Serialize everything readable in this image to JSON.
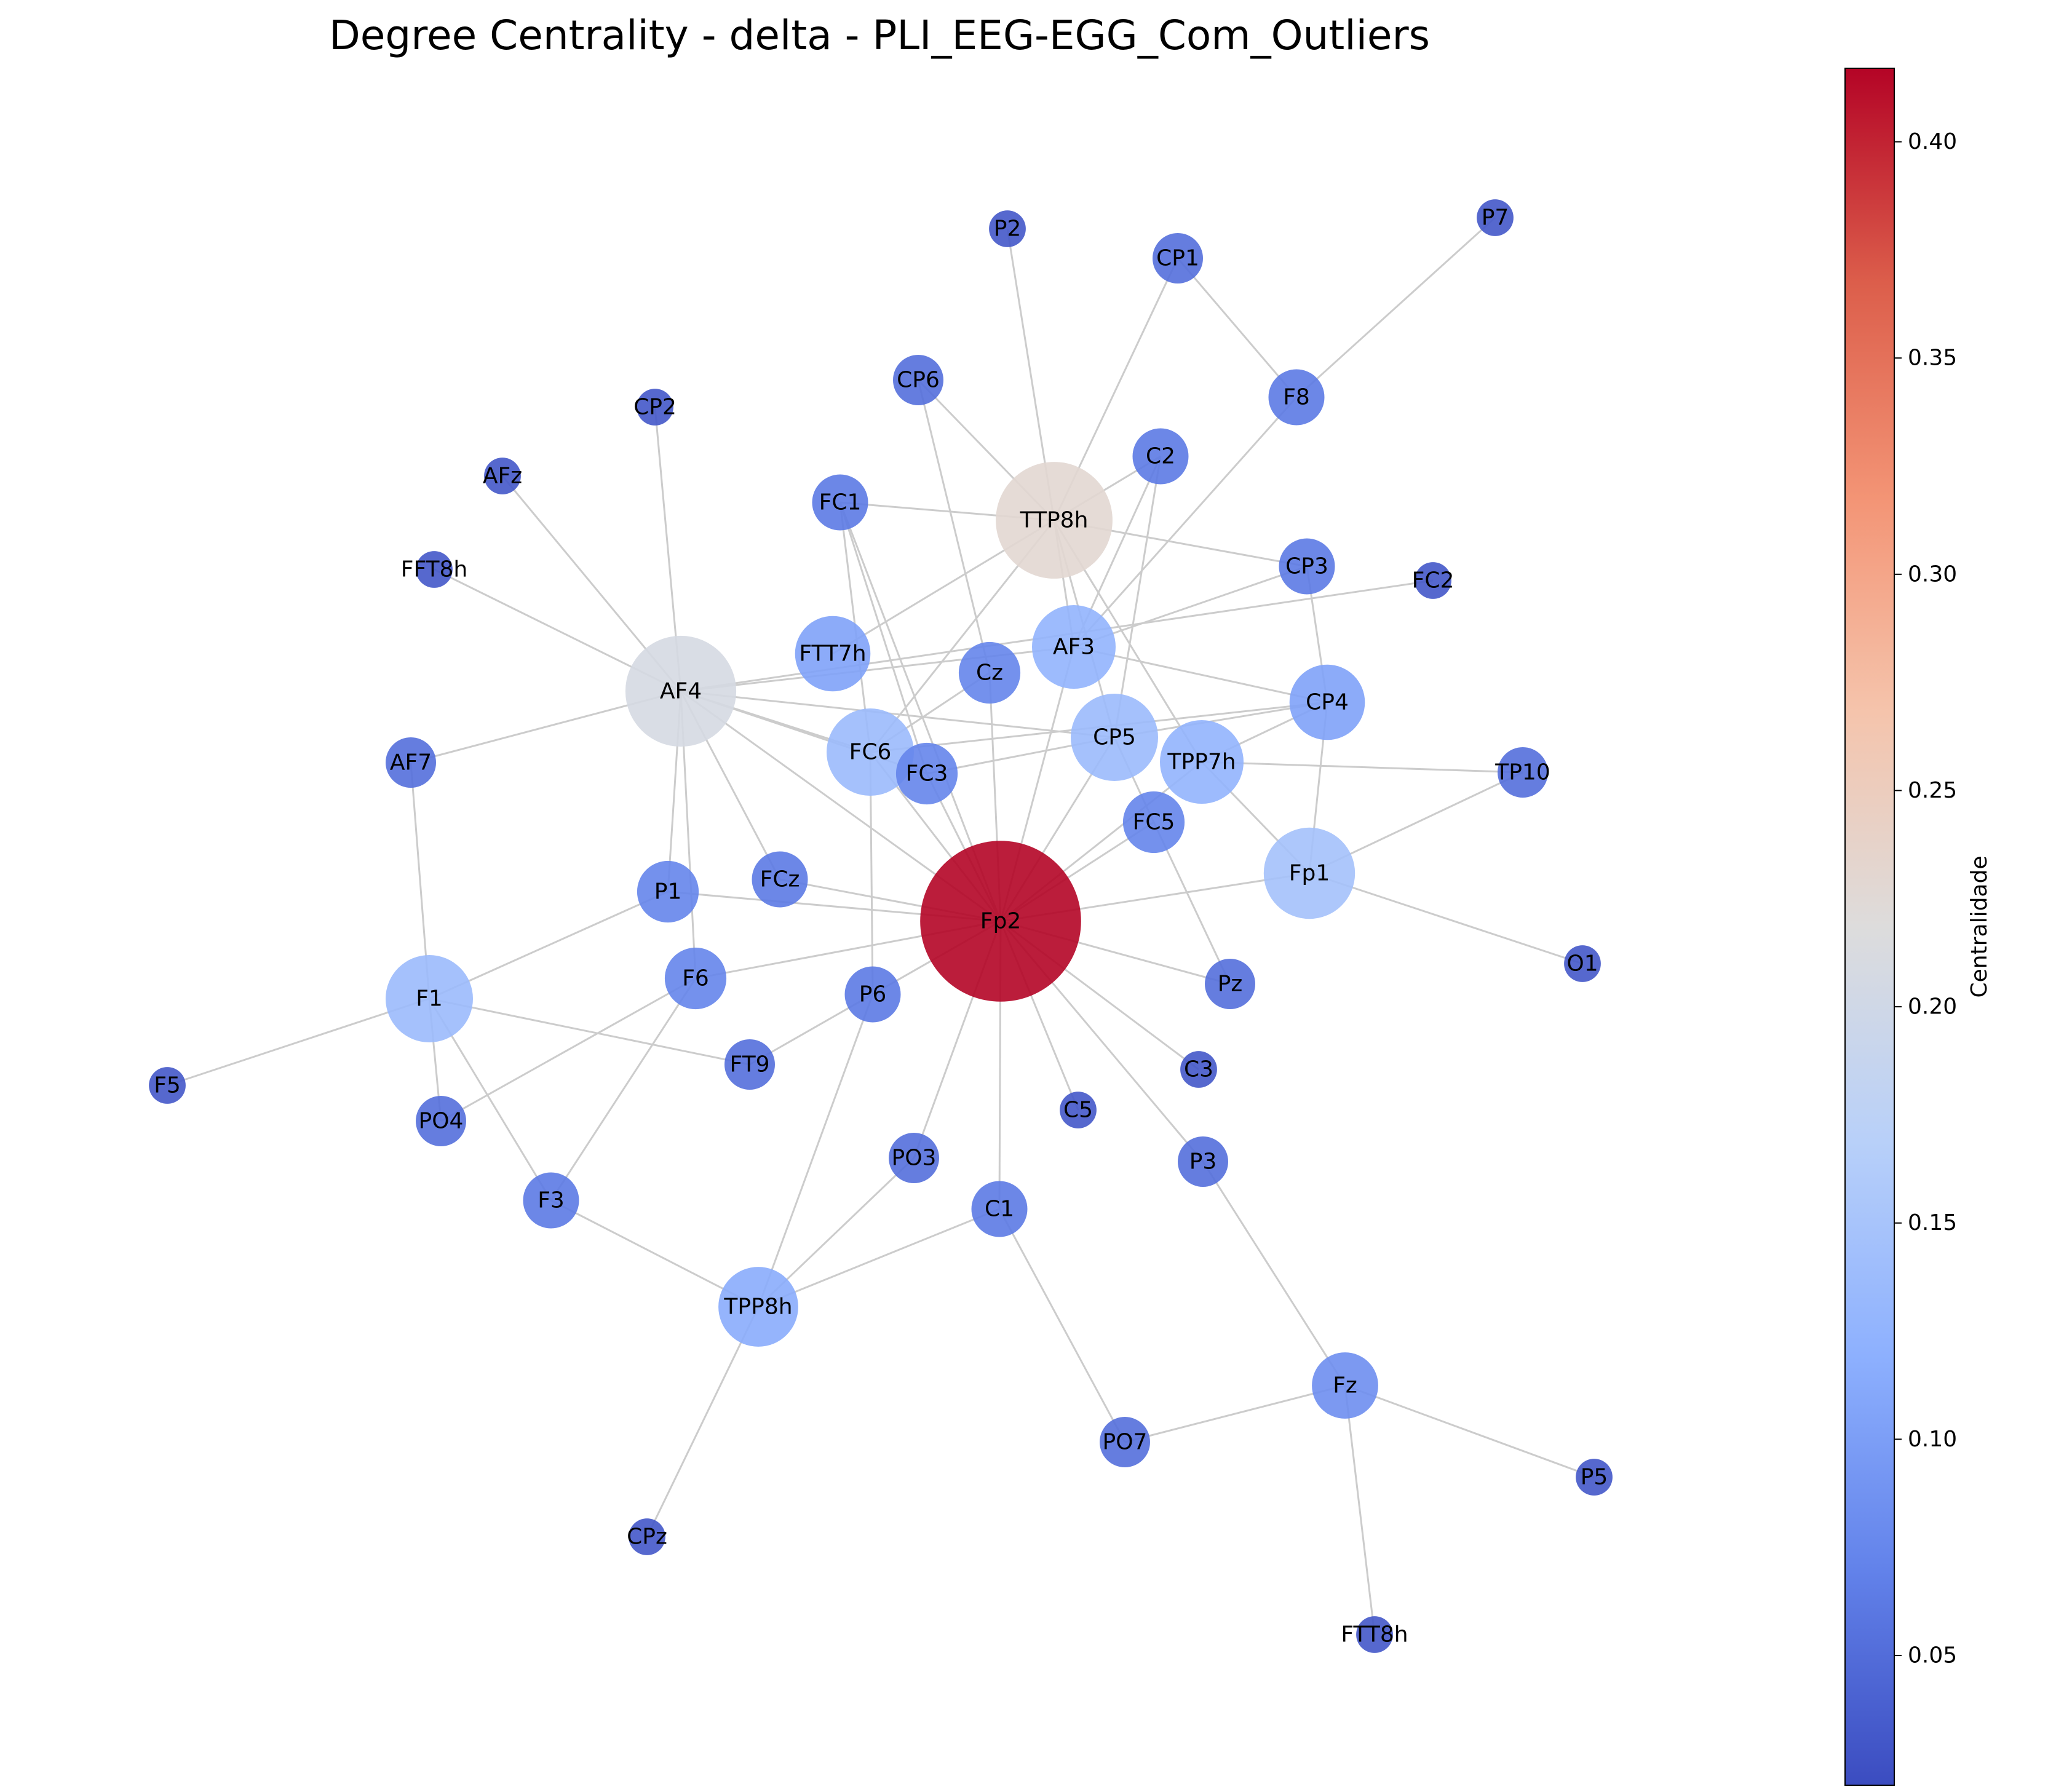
{
  "title": "Degree Centrality - delta - PLI_EEG-EGG_Com_Outliers",
  "colorbar": {
    "label": "Centralidade",
    "min": 0.02,
    "max": 0.417,
    "ticks": [
      "0.05",
      "0.10",
      "0.15",
      "0.20",
      "0.25",
      "0.30",
      "0.35",
      "0.40"
    ],
    "tick_values": [
      0.05,
      0.1,
      0.15,
      0.2,
      0.25,
      0.3,
      0.35,
      0.4
    ],
    "colormap": "coolwarm",
    "colors": [
      "#3b4cc0",
      "#6282ea",
      "#8db0fe",
      "#b8d0f9",
      "#dddcdc",
      "#f5c4ac",
      "#f39475",
      "#dc5e4b",
      "#b40426"
    ]
  },
  "graph": {
    "nodes": [
      {
        "id": "Fp2",
        "centrality": 0.417
      },
      {
        "id": "TTP8h",
        "centrality": 0.229
      },
      {
        "id": "AF4",
        "centrality": 0.208
      },
      {
        "id": "Fp1",
        "centrality": 0.146
      },
      {
        "id": "F1",
        "centrality": 0.135
      },
      {
        "id": "CP5",
        "centrality": 0.135
      },
      {
        "id": "AF3",
        "centrality": 0.125
      },
      {
        "id": "FC6",
        "centrality": 0.135
      },
      {
        "id": "TPP7h",
        "centrality": 0.125
      },
      {
        "id": "TPP8h",
        "centrality": 0.115
      },
      {
        "id": "FTT7h",
        "centrality": 0.104
      },
      {
        "id": "CP4",
        "centrality": 0.104
      },
      {
        "id": "Fz",
        "centrality": 0.083
      },
      {
        "id": "Cz",
        "centrality": 0.073
      },
      {
        "id": "FC3",
        "centrality": 0.073
      },
      {
        "id": "FC5",
        "centrality": 0.073
      },
      {
        "id": "P1",
        "centrality": 0.073
      },
      {
        "id": "F6",
        "centrality": 0.073
      },
      {
        "id": "FC1",
        "centrality": 0.062
      },
      {
        "id": "C2",
        "centrality": 0.062
      },
      {
        "id": "CP3",
        "centrality": 0.062
      },
      {
        "id": "F8",
        "centrality": 0.062
      },
      {
        "id": "FCz",
        "centrality": 0.062
      },
      {
        "id": "P6",
        "centrality": 0.062
      },
      {
        "id": "C1",
        "centrality": 0.062
      },
      {
        "id": "F3",
        "centrality": 0.062
      },
      {
        "id": "CP1",
        "centrality": 0.052
      },
      {
        "id": "CP6",
        "centrality": 0.052
      },
      {
        "id": "AF7",
        "centrality": 0.052
      },
      {
        "id": "FT9",
        "centrality": 0.052
      },
      {
        "id": "Pz",
        "centrality": 0.052
      },
      {
        "id": "PO4",
        "centrality": 0.052
      },
      {
        "id": "PO3",
        "centrality": 0.052
      },
      {
        "id": "P3",
        "centrality": 0.052
      },
      {
        "id": "PO7",
        "centrality": 0.052
      },
      {
        "id": "TP10",
        "centrality": 0.052
      },
      {
        "id": "P2",
        "centrality": 0.031
      },
      {
        "id": "P7",
        "centrality": 0.031
      },
      {
        "id": "CP2",
        "centrality": 0.031
      },
      {
        "id": "AFz",
        "centrality": 0.031
      },
      {
        "id": "FFT8h",
        "centrality": 0.031
      },
      {
        "id": "FC2",
        "centrality": 0.031
      },
      {
        "id": "O1",
        "centrality": 0.031
      },
      {
        "id": "F5",
        "centrality": 0.031
      },
      {
        "id": "C3",
        "centrality": 0.031
      },
      {
        "id": "C5",
        "centrality": 0.031
      },
      {
        "id": "CPz",
        "centrality": 0.031
      },
      {
        "id": "P5",
        "centrality": 0.031
      },
      {
        "id": "FTT8h",
        "centrality": 0.031
      }
    ],
    "edges": [
      [
        "Fp2",
        "FC6"
      ],
      [
        "Fp2",
        "FC3"
      ],
      [
        "Fp2",
        "Cz"
      ],
      [
        "Fp2",
        "AF3"
      ],
      [
        "Fp2",
        "CP5"
      ],
      [
        "Fp2",
        "FC5"
      ],
      [
        "Fp2",
        "TPP7h"
      ],
      [
        "Fp2",
        "Fp1"
      ],
      [
        "Fp2",
        "Pz"
      ],
      [
        "Fp2",
        "C3"
      ],
      [
        "Fp2",
        "P3"
      ],
      [
        "Fp2",
        "C5"
      ],
      [
        "Fp2",
        "C1"
      ],
      [
        "Fp2",
        "PO3"
      ],
      [
        "Fp2",
        "FT9"
      ],
      [
        "Fp2",
        "F6"
      ],
      [
        "Fp2",
        "P1"
      ],
      [
        "Fp2",
        "FCz"
      ],
      [
        "Fp2",
        "AF4"
      ],
      [
        "Fp2",
        "FC1"
      ],
      [
        "TTP8h",
        "P2"
      ],
      [
        "TTP8h",
        "CP1"
      ],
      [
        "TTP8h",
        "CP6"
      ],
      [
        "TTP8h",
        "C2"
      ],
      [
        "TTP8h",
        "FC1"
      ],
      [
        "TTP8h",
        "CP3"
      ],
      [
        "TTP8h",
        "FTT7h"
      ],
      [
        "TTP8h",
        "AF3"
      ],
      [
        "TTP8h",
        "TPP7h"
      ],
      [
        "TTP8h",
        "FC6"
      ],
      [
        "TTP8h",
        "CP5"
      ],
      [
        "AF4",
        "AFz"
      ],
      [
        "AF4",
        "FFT8h"
      ],
      [
        "AF4",
        "CP2"
      ],
      [
        "AF4",
        "AF7"
      ],
      [
        "AF4",
        "P1"
      ],
      [
        "AF4",
        "F6"
      ],
      [
        "AF4",
        "FCz"
      ],
      [
        "AF4",
        "FC6"
      ],
      [
        "AF4",
        "CP5"
      ],
      [
        "AF4",
        "AF3"
      ],
      [
        "AF4",
        "FC2"
      ],
      [
        "AF4",
        "FC3"
      ],
      [
        "AF3",
        "C2"
      ],
      [
        "AF3",
        "F8"
      ],
      [
        "AF3",
        "CP3"
      ],
      [
        "AF3",
        "CP4"
      ],
      [
        "CP5",
        "C2"
      ],
      [
        "CP5",
        "FC3"
      ],
      [
        "CP5",
        "CP4"
      ],
      [
        "CP5",
        "FC5"
      ],
      [
        "FC6",
        "CP4"
      ],
      [
        "FC6",
        "P6"
      ],
      [
        "FC6",
        "Cz"
      ],
      [
        "CP4",
        "CP3"
      ],
      [
        "CP4",
        "Fp1"
      ],
      [
        "CP4",
        "TPP7h"
      ],
      [
        "TPP7h",
        "TP10"
      ],
      [
        "TPP7h",
        "Fp1"
      ],
      [
        "Fp1",
        "TP10"
      ],
      [
        "Fp1",
        "O1"
      ],
      [
        "FC1",
        "FC3"
      ],
      [
        "FC1",
        "FC6"
      ],
      [
        "Cz",
        "CP6"
      ],
      [
        "CP1",
        "F8"
      ],
      [
        "F8",
        "P7"
      ],
      [
        "FC5",
        "Pz"
      ],
      [
        "F1",
        "AF7"
      ],
      [
        "F1",
        "P1"
      ],
      [
        "F1",
        "F5"
      ],
      [
        "F1",
        "PO4"
      ],
      [
        "F1",
        "F3"
      ],
      [
        "F1",
        "FT9"
      ],
      [
        "F6",
        "PO4"
      ],
      [
        "F6",
        "F3"
      ],
      [
        "F3",
        "TPP8h"
      ],
      [
        "TPP8h",
        "P6"
      ],
      [
        "TPP8h",
        "PO3"
      ],
      [
        "TPP8h",
        "C1"
      ],
      [
        "TPP8h",
        "CPz"
      ],
      [
        "C1",
        "PO7"
      ],
      [
        "PO7",
        "Fz"
      ],
      [
        "P3",
        "Fz"
      ],
      [
        "Fz",
        "P5"
      ],
      [
        "Fz",
        "FTT8h"
      ]
    ]
  }
}
